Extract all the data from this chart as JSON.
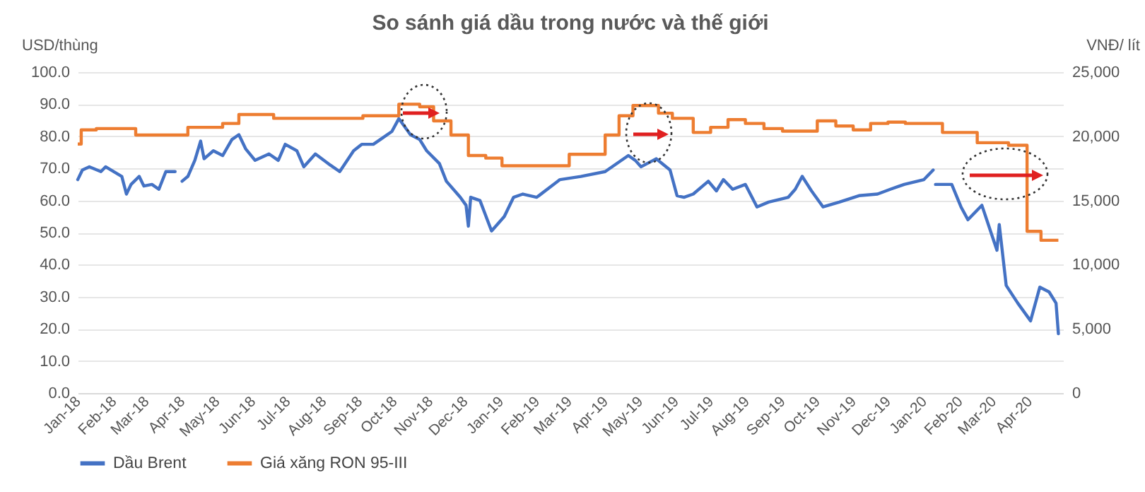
{
  "chart_data": {
    "type": "line",
    "title": "So sánh giá dầu trong nước và thế giới",
    "ylabel": "USD/thùng",
    "y2label": "VNĐ/ lít",
    "xlim": [
      "2018-01-01",
      "2020-04-30"
    ],
    "xticks": [
      {
        "value": "2018-01-01",
        "label": "Jan-18"
      },
      {
        "value": "2018-02-01",
        "label": "Feb-18"
      },
      {
        "value": "2018-03-01",
        "label": "Mar-18"
      },
      {
        "value": "2018-04-01",
        "label": "Apr-18"
      },
      {
        "value": "2018-05-01",
        "label": "May-18"
      },
      {
        "value": "2018-06-01",
        "label": "Jun-18"
      },
      {
        "value": "2018-07-01",
        "label": "Jul-18"
      },
      {
        "value": "2018-08-01",
        "label": "Aug-18"
      },
      {
        "value": "2018-09-01",
        "label": "Sep-18"
      },
      {
        "value": "2018-10-01",
        "label": "Oct-18"
      },
      {
        "value": "2018-11-01",
        "label": "Nov-18"
      },
      {
        "value": "2018-12-01",
        "label": "Dec-18"
      },
      {
        "value": "2019-01-01",
        "label": "Jan-19"
      },
      {
        "value": "2019-02-01",
        "label": "Feb-19"
      },
      {
        "value": "2019-03-01",
        "label": "Mar-19"
      },
      {
        "value": "2019-04-01",
        "label": "Apr-19"
      },
      {
        "value": "2019-05-01",
        "label": "May-19"
      },
      {
        "value": "2019-06-01",
        "label": "Jun-19"
      },
      {
        "value": "2019-07-01",
        "label": "Jul-19"
      },
      {
        "value": "2019-08-01",
        "label": "Aug-19"
      },
      {
        "value": "2019-09-01",
        "label": "Sep-19"
      },
      {
        "value": "2019-10-01",
        "label": "Oct-19"
      },
      {
        "value": "2019-11-01",
        "label": "Nov-19"
      },
      {
        "value": "2019-12-01",
        "label": "Dec-19"
      },
      {
        "value": "2020-01-01",
        "label": "Jan-20"
      },
      {
        "value": "2020-02-01",
        "label": "Feb-20"
      },
      {
        "value": "2020-03-01",
        "label": "Mar-20"
      },
      {
        "value": "2020-04-01",
        "label": "Apr-20"
      }
    ],
    "ylim": [
      0,
      100
    ],
    "yticks": [
      {
        "value": 0,
        "label": "0.0"
      },
      {
        "value": 10,
        "label": "10.0"
      },
      {
        "value": 20,
        "label": "20.0"
      },
      {
        "value": 30,
        "label": "30.0"
      },
      {
        "value": 40,
        "label": "40.0"
      },
      {
        "value": 50,
        "label": "50.0"
      },
      {
        "value": 60,
        "label": "60.0"
      },
      {
        "value": 70,
        "label": "70.0"
      },
      {
        "value": 80,
        "label": "80.0"
      },
      {
        "value": 90,
        "label": "90.0"
      },
      {
        "value": 100,
        "label": "100.0"
      }
    ],
    "y2lim": [
      0,
      25000
    ],
    "y2ticks": [
      0,
      {
        "value": 5000,
        "label": "5,000"
      },
      {
        "value": 10000,
        "label": "10,000"
      },
      {
        "value": 15000,
        "label": "15,000"
      },
      {
        "value": 20000,
        "label": "20,000"
      },
      {
        "value": 25000,
        "label": "25,000"
      }
    ],
    "grid": "y",
    "legend": "bottom",
    "series": [
      {
        "name": "Dầu Brent",
        "type": "line",
        "color": "#4472c4",
        "x": [
          "2018-01-01",
          "2018-01-05",
          "2018-01-11",
          "2018-01-21",
          "2018-01-25",
          "2018-02-08",
          "2018-02-12",
          "2018-02-16",
          "2018-02-23",
          "2018-02-27",
          "2018-03-06",
          "2018-03-12",
          "2018-03-18",
          "2018-03-26",
          "2018-03-28",
          "2018-04-01",
          "2018-04-06",
          "2018-04-12",
          "2018-04-17",
          "2018-04-20",
          "2018-04-28",
          "2018-05-06",
          "2018-05-14",
          "2018-05-20",
          "2018-05-26",
          "2018-06-03",
          "2018-06-15",
          "2018-06-23",
          "2018-06-29",
          "2018-07-09",
          "2018-07-15",
          "2018-07-25",
          "2018-08-07",
          "2018-08-15",
          "2018-08-27",
          "2018-09-03",
          "2018-09-13",
          "2018-09-19",
          "2018-09-29",
          "2018-10-05",
          "2018-10-15",
          "2018-10-23",
          "2018-10-29",
          "2018-11-09",
          "2018-11-15",
          "2018-11-27",
          "2018-12-02",
          "2018-12-04",
          "2018-12-06",
          "2018-12-14",
          "2018-12-24",
          "2019-01-04",
          "2019-01-12",
          "2019-01-20",
          "2019-02-01",
          "2019-02-21",
          "2019-03-11",
          "2019-04-01",
          "2019-04-21",
          "2019-04-27",
          "2019-05-02",
          "2019-05-15",
          "2019-05-27",
          "2019-06-02",
          "2019-06-08",
          "2019-06-16",
          "2019-06-29",
          "2019-07-06",
          "2019-07-12",
          "2019-07-20",
          "2019-07-31",
          "2019-08-10",
          "2019-08-20",
          "2019-09-06",
          "2019-09-12",
          "2019-09-18",
          "2019-09-26",
          "2019-10-06",
          "2019-10-20",
          "2019-11-06",
          "2019-11-22",
          "2019-12-03",
          "2019-12-15",
          "2020-01-01",
          "2020-01-09",
          "2020-01-10",
          "2020-01-11",
          "2020-01-25",
          "2020-02-02",
          "2020-02-08",
          "2020-02-20",
          "2020-03-04",
          "2020-03-06",
          "2020-03-12",
          "2020-03-22",
          "2020-04-02",
          "2020-04-10",
          "2020-04-18",
          "2020-04-24",
          "2020-04-26"
        ],
        "values": [
          66.5,
          69.5,
          70.5,
          69,
          70.5,
          67.5,
          62,
          65,
          67.5,
          64.5,
          65,
          63.5,
          69,
          69,
          null,
          66,
          67.5,
          72.5,
          78.5,
          73,
          75.5,
          74,
          79,
          80.5,
          76,
          72.5,
          74.5,
          72.5,
          77.5,
          75.5,
          70.5,
          74.5,
          71,
          69,
          75.5,
          77.5,
          77.5,
          79,
          81.5,
          85.5,
          80.5,
          79,
          75.5,
          71.5,
          66,
          61,
          58.5,
          52,
          61,
          60,
          50.5,
          55,
          61,
          62,
          61,
          66.5,
          67.5,
          69,
          74,
          72.5,
          70.5,
          73,
          69.5,
          61.5,
          61,
          62,
          66,
          63,
          66.5,
          63.5,
          65,
          58,
          59.5,
          61,
          63.5,
          67.5,
          63,
          58,
          59.5,
          61.5,
          62,
          63.5,
          65,
          66.5,
          69.5,
          null,
          65,
          65,
          58,
          54,
          58.5,
          44.5,
          52.5,
          33.5,
          28,
          22.5,
          33,
          31.5,
          28,
          18.5
        ]
      },
      {
        "name": "Giá xăng RON 95-III",
        "type": "step",
        "axis": "y2",
        "color": "#ed7d31",
        "x": [
          "2018-01-01",
          "2018-01-04",
          "2018-01-17",
          "2018-02-20",
          "2018-04-06",
          "2018-05-06",
          "2018-05-20",
          "2018-06-19",
          "2018-09-04",
          "2018-10-05",
          "2018-10-23",
          "2018-11-04",
          "2018-11-19",
          "2018-12-04",
          "2018-12-19",
          "2019-01-02",
          "2019-03-01",
          "2019-04-01",
          "2019-04-13",
          "2019-04-25",
          "2019-05-17",
          "2019-05-29",
          "2019-06-16",
          "2019-07-01",
          "2019-07-16",
          "2019-07-31",
          "2019-08-16",
          "2019-09-01",
          "2019-10-01",
          "2019-10-17",
          "2019-11-01",
          "2019-11-16",
          "2019-12-01",
          "2019-12-16",
          "2020-01-17",
          "2020-02-16",
          "2020-03-14",
          "2020-03-30",
          "2020-04-11",
          "2020-04-26"
        ],
        "values": [
          19400,
          20500,
          20600,
          20100,
          20700,
          21000,
          21700,
          21400,
          21600,
          22500,
          22300,
          21200,
          20100,
          18500,
          18300,
          17700,
          18600,
          20100,
          21600,
          22400,
          21800,
          21400,
          20300,
          20700,
          21300,
          21000,
          20600,
          20400,
          21200,
          20800,
          20500,
          21000,
          21100,
          21000,
          20300,
          19500,
          19300,
          12600,
          11900,
          11900
        ]
      }
    ]
  }
}
